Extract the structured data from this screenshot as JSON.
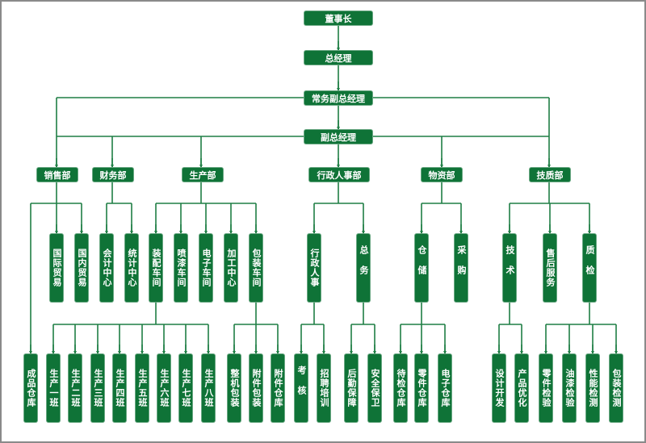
{
  "colors": {
    "box": "#0f7337",
    "line": "#1f7f45",
    "text": "#ffffff"
  },
  "top": {
    "chairman": "董事长",
    "general_manager": "总经理",
    "executive_vp": "常务副总经理",
    "vice_president": "副总经理"
  },
  "departments": [
    {
      "name": "销售部",
      "units": [
        "国际贸易",
        "国内贸易"
      ],
      "direct": [
        "成品仓库"
      ]
    },
    {
      "name": "财务部",
      "units": [
        "会计中心",
        "统计中心"
      ]
    },
    {
      "name": "生产部",
      "units": [
        "装配车间",
        "喷漆车间",
        "电子车间",
        "加工中心",
        "包装车间"
      ]
    },
    {
      "name": "行政人事部",
      "units": [
        "行政人事",
        "总务"
      ]
    },
    {
      "name": "物资部",
      "units": [
        "仓储",
        "采购"
      ]
    },
    {
      "name": "技质部",
      "units": [
        "技术",
        "售后服务",
        "质检"
      ]
    }
  ],
  "teams": {
    "装配车间": [
      "生产一班",
      "生产二班",
      "生产三班",
      "生产四班",
      "生产五班",
      "生产六班",
      "生产七班",
      "生产八班"
    ],
    "包装车间": [
      "整机包装",
      "附件包装",
      "附件仓库"
    ],
    "行政人事": [
      "考核",
      "招聘培训"
    ],
    "总务": [
      "后勤保障",
      "安全保卫"
    ],
    "仓储": [
      "待检仓库",
      "零件仓库",
      "电子仓库"
    ],
    "技术": [
      "设计开发",
      "产品优化"
    ],
    "质检": [
      "零件检验",
      "油漆检验",
      "性能检测",
      "包装检测"
    ]
  }
}
